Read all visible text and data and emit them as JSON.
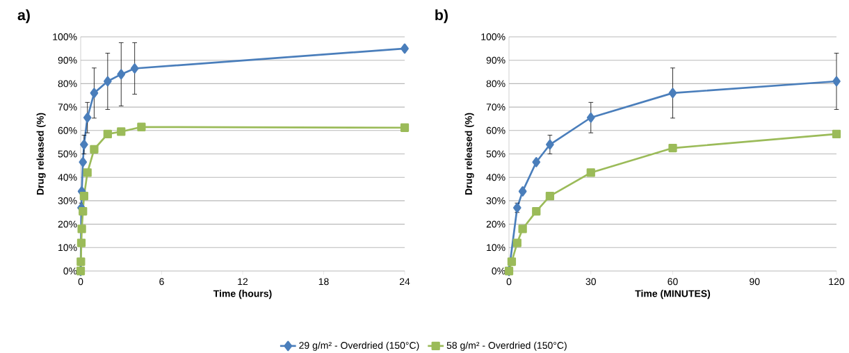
{
  "chart_data": [
    {
      "type": "line",
      "title": "a)",
      "xlabel": "Time (hours)",
      "ylabel": "Drug released (%)",
      "xlim": [
        0,
        24
      ],
      "xticks": [
        0,
        6,
        12,
        18,
        24
      ],
      "ylim": [
        0,
        100
      ],
      "yticks": [
        {
          "value": 0,
          "label": "0%"
        },
        {
          "value": 10,
          "label": "10%"
        },
        {
          "value": 20,
          "label": "20%"
        },
        {
          "value": 30,
          "label": "30%"
        },
        {
          "value": 40,
          "label": "40%"
        },
        {
          "value": 50,
          "label": "50%"
        },
        {
          "value": 60,
          "label": "60%"
        },
        {
          "value": 70,
          "label": "70%"
        },
        {
          "value": 80,
          "label": "80%"
        },
        {
          "value": 90,
          "label": "90%"
        },
        {
          "value": 100,
          "label": "100%"
        }
      ],
      "grid": "y",
      "legend": "bottom",
      "series": [
        {
          "name": "29 g/m² - Overdried (150°C)",
          "color": "#4a7ebb",
          "marker": "diamond",
          "x": [
            0,
            0.05,
            0.083,
            0.167,
            0.25,
            0.5,
            1,
            2,
            3,
            4,
            24
          ],
          "values": [
            0,
            27,
            34,
            46.5,
            54,
            65.5,
            76,
            81,
            84,
            86.5,
            95
          ],
          "errors": [
            null,
            2,
            null,
            null,
            4,
            6.5,
            10.7,
            12,
            13.5,
            11,
            null
          ]
        },
        {
          "name": "58 g/m² - Overdried (150°C)",
          "color": "#9bbb59",
          "marker": "square",
          "x": [
            0,
            0.017,
            0.05,
            0.083,
            0.167,
            0.25,
            0.5,
            1,
            2,
            3,
            4.5,
            24
          ],
          "values": [
            0,
            4,
            12,
            18,
            25.5,
            32,
            42,
            52,
            58.5,
            59.5,
            61.5,
            61.2
          ]
        }
      ]
    },
    {
      "type": "line",
      "title": "b)",
      "xlabel": "Time (MINUTES)",
      "ylabel": "Drug released (%)",
      "xlim": [
        0,
        120
      ],
      "xticks": [
        0,
        30,
        60,
        90,
        120
      ],
      "ylim": [
        0,
        100
      ],
      "yticks": [
        {
          "value": 0,
          "label": "0%"
        },
        {
          "value": 10,
          "label": "10%"
        },
        {
          "value": 20,
          "label": "20%"
        },
        {
          "value": 30,
          "label": "30%"
        },
        {
          "value": 40,
          "label": "40%"
        },
        {
          "value": 50,
          "label": "50%"
        },
        {
          "value": 60,
          "label": "60%"
        },
        {
          "value": 70,
          "label": "70%"
        },
        {
          "value": 80,
          "label": "80%"
        },
        {
          "value": 90,
          "label": "90%"
        },
        {
          "value": 100,
          "label": "100%"
        }
      ],
      "grid": "y",
      "series": [
        {
          "color": "#4a7ebb",
          "marker": "diamond",
          "x": [
            0,
            3,
            5,
            10,
            15,
            30,
            60,
            120
          ],
          "values": [
            0,
            27,
            34,
            46.5,
            54,
            65.5,
            76,
            81
          ],
          "errors": [
            null,
            2,
            null,
            null,
            4,
            6.5,
            10.7,
            12
          ]
        },
        {
          "color": "#9bbb59",
          "marker": "square",
          "x": [
            0,
            1,
            3,
            5,
            10,
            15,
            30,
            60,
            120
          ],
          "values": [
            0,
            4,
            12,
            18,
            25.5,
            32,
            42,
            52.5,
            58.5
          ]
        }
      ]
    }
  ]
}
